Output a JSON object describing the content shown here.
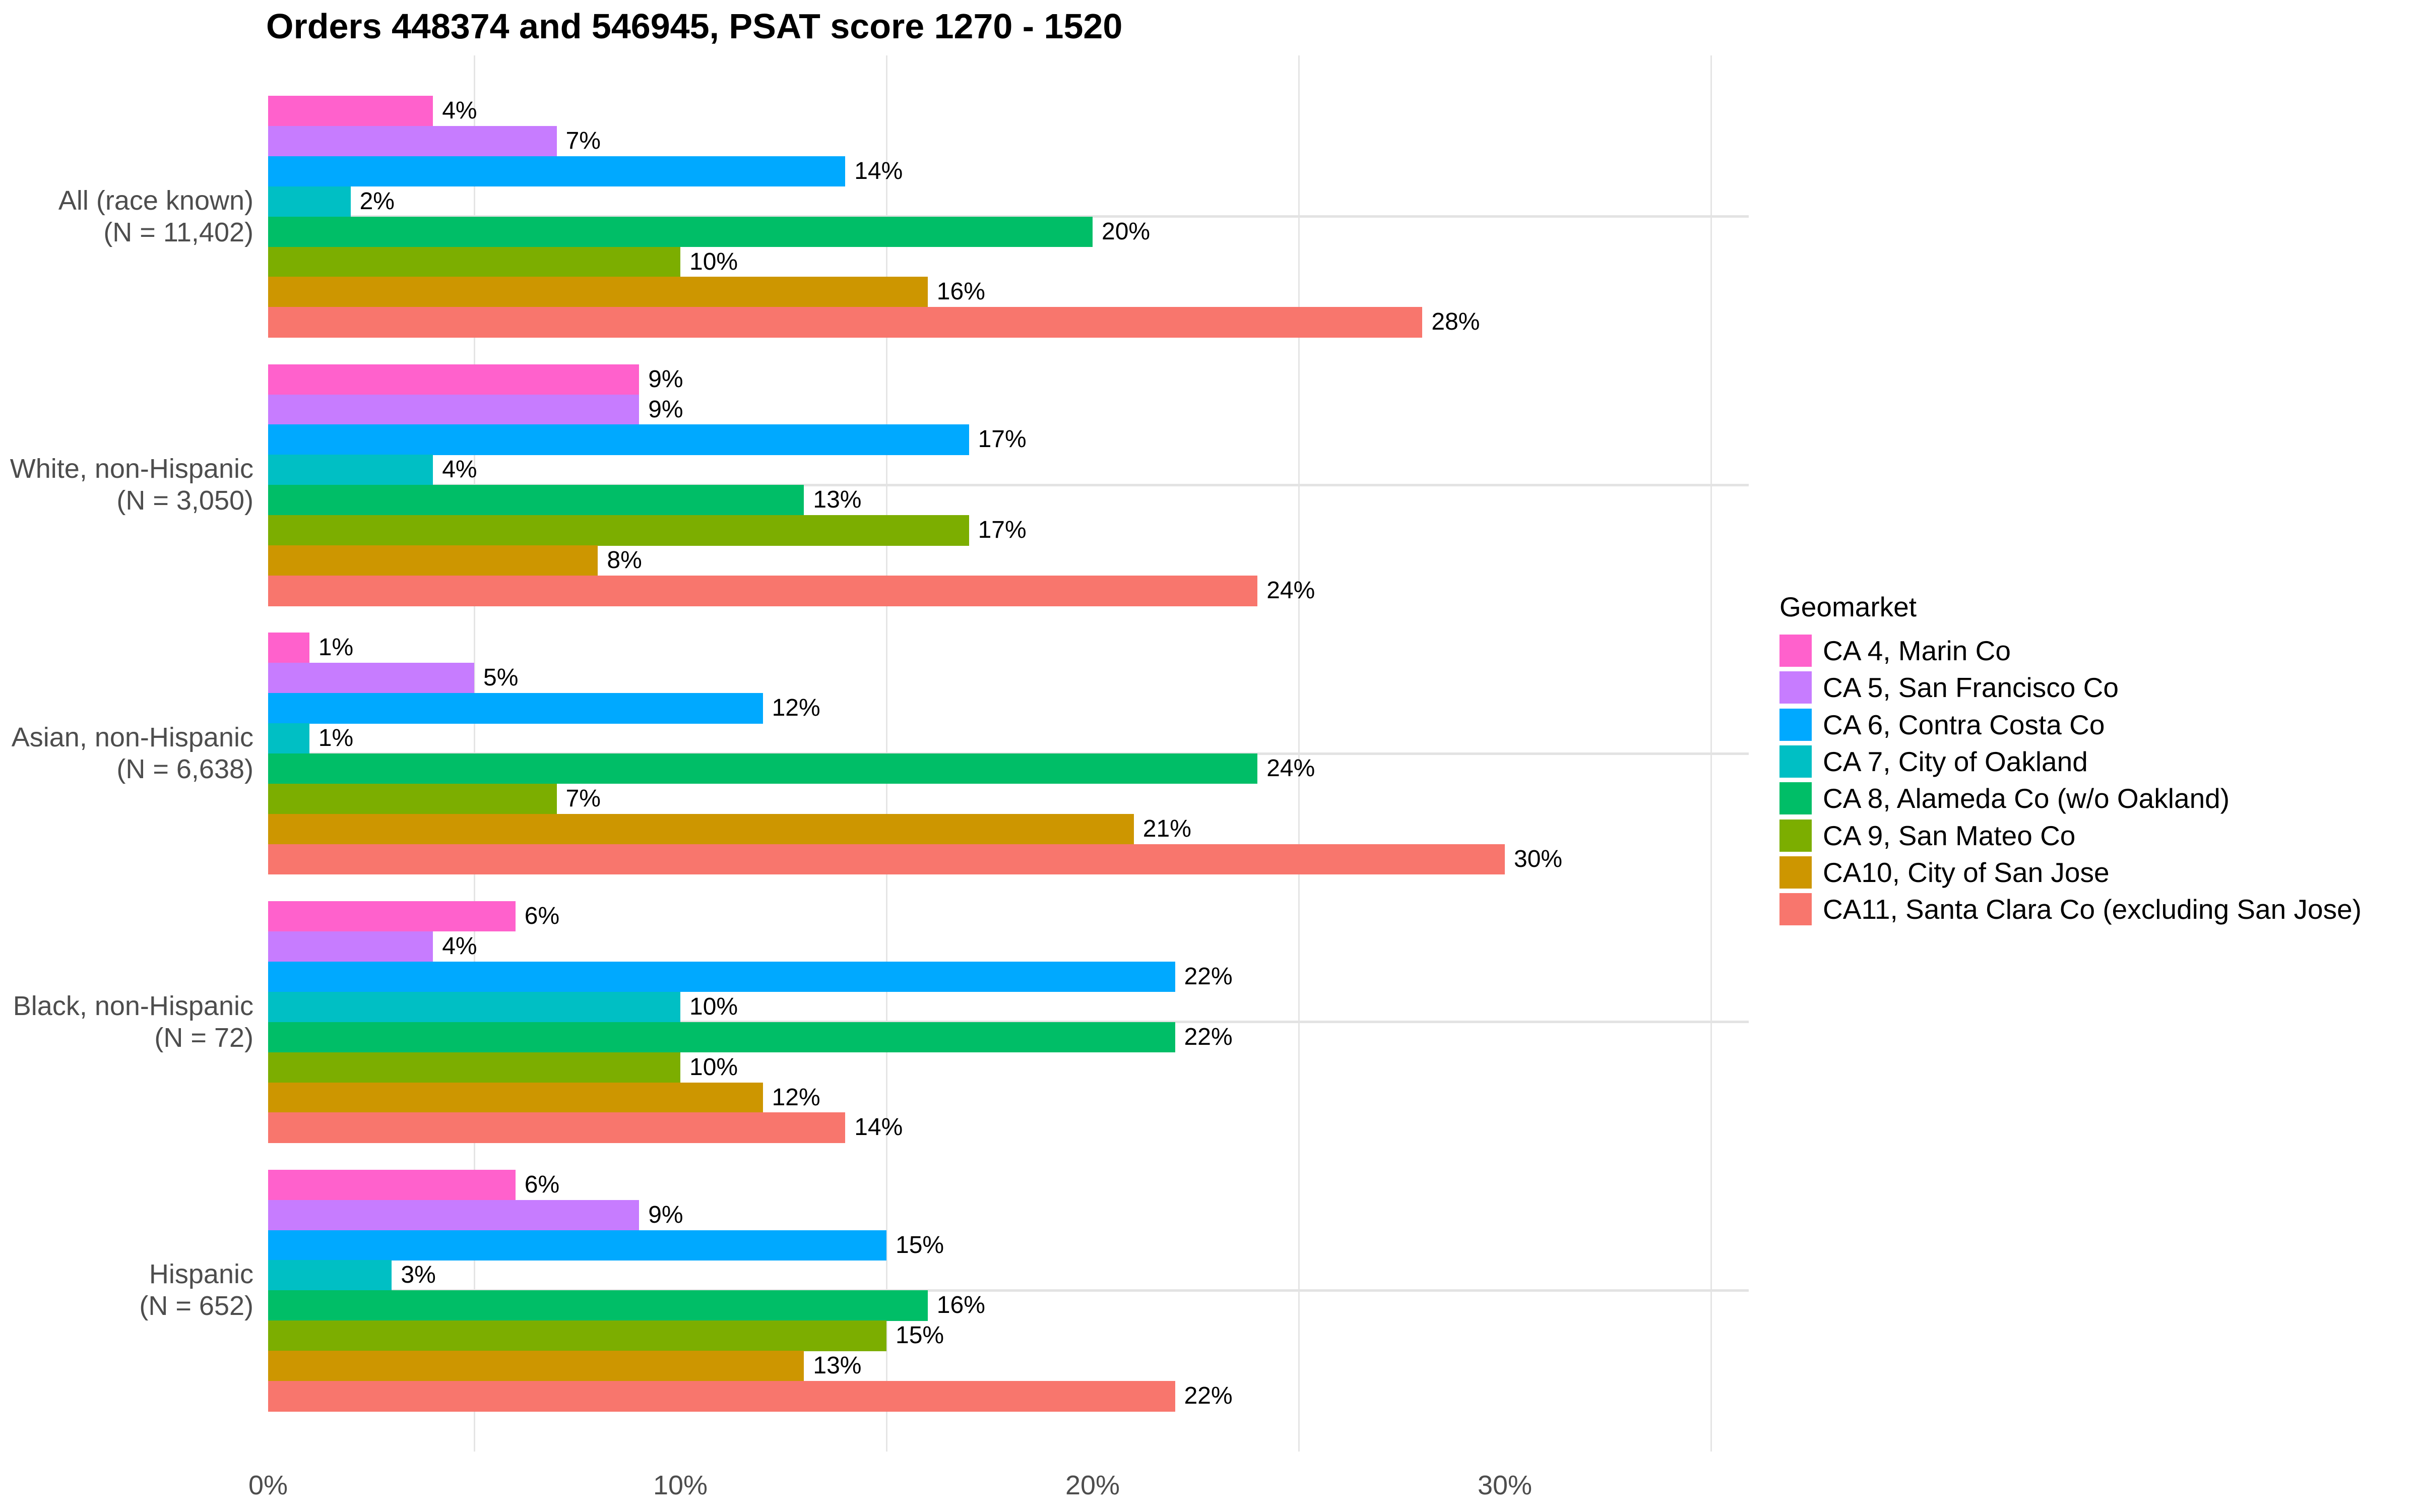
{
  "chart_data": {
    "type": "bar",
    "orientation": "horizontal",
    "title": "Orders 448374 and 546945, PSAT score 1270 - 1520",
    "legend_title": "Geomarket",
    "legend_position": "right",
    "value_format": "percent",
    "grid": {
      "vertical_minor_color": "#E5E5E5",
      "horizontal_major_color": "#E3E3E3",
      "vertical_major_gridlines": "none"
    },
    "text_colors": {
      "axis": "#4D4D4D",
      "labels": "#000000",
      "title": "#000000"
    },
    "x_axis": {
      "label": "",
      "tick_values": [
        0,
        10,
        20,
        30
      ],
      "tick_labels": [
        "0%",
        "10%",
        "20%",
        "30%"
      ],
      "minor_gridlines": [
        5,
        15,
        25,
        35
      ],
      "range": [
        0,
        35.9
      ]
    },
    "categories": [
      {
        "line1": "All (race known)",
        "line2": "(N = 11,402)"
      },
      {
        "line1": "White, non-Hispanic",
        "line2": "(N = 3,050)"
      },
      {
        "line1": "Asian, non-Hispanic",
        "line2": "(N = 6,638)"
      },
      {
        "line1": "Black, non-Hispanic",
        "line2": "(N = 72)"
      },
      {
        "line1": "Hispanic",
        "line2": "(N = 652)"
      }
    ],
    "series": [
      {
        "name": "CA 4, Marin Co",
        "color": "#FF61CC",
        "values": [
          4,
          9,
          1,
          6,
          6
        ]
      },
      {
        "name": "CA 5, San Francisco Co",
        "color": "#C77CFF",
        "values": [
          7,
          9,
          5,
          4,
          9
        ]
      },
      {
        "name": "CA 6, Contra Costa Co",
        "color": "#00A9FF",
        "values": [
          14,
          17,
          12,
          22,
          15
        ]
      },
      {
        "name": "CA 7, City of Oakland",
        "color": "#00BFC4",
        "values": [
          2,
          4,
          1,
          10,
          3
        ]
      },
      {
        "name": "CA 8, Alameda Co (w/o Oakland)",
        "color": "#00BE67",
        "values": [
          20,
          13,
          24,
          22,
          16
        ]
      },
      {
        "name": "CA 9, San Mateo Co",
        "color": "#7CAE00",
        "values": [
          10,
          17,
          7,
          10,
          15
        ]
      },
      {
        "name": "CA10, City of San Jose",
        "color": "#CD9600",
        "values": [
          16,
          8,
          21,
          12,
          13
        ]
      },
      {
        "name": "CA11, Santa Clara Co (excluding San Jose)",
        "color": "#F8766D",
        "values": [
          28,
          24,
          30,
          14,
          22
        ]
      }
    ]
  }
}
